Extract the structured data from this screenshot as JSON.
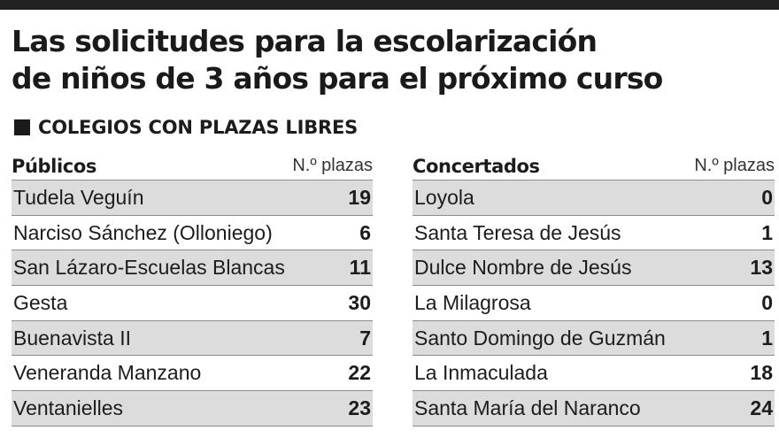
{
  "title": {
    "line1": "Las solicitudes para la escolarización",
    "line2": "de niños de 3 años para el próximo curso"
  },
  "section_heading": "COLEGIOS CON PLAZAS LIBRES",
  "publicos": {
    "label": "Públicos",
    "unit": "N.º plazas",
    "rows": [
      {
        "name": "Tudela Veguín",
        "plazas": "19"
      },
      {
        "name": "Narciso Sánchez (Olloniego)",
        "plazas": "6"
      },
      {
        "name": "San Lázaro-Escuelas Blancas",
        "plazas": "11"
      },
      {
        "name": "Gesta",
        "plazas": "30"
      },
      {
        "name": "Buenavista II",
        "plazas": "7"
      },
      {
        "name": "Veneranda Manzano",
        "plazas": "22"
      },
      {
        "name": "Ventanielles",
        "plazas": "23"
      }
    ]
  },
  "concertados": {
    "label": "Concertados",
    "unit": "N.º plazas",
    "rows": [
      {
        "name": "Loyola",
        "plazas": "0"
      },
      {
        "name": "Santa Teresa de Jesús",
        "plazas": "1"
      },
      {
        "name": "Dulce Nombre de Jesús",
        "plazas": "13"
      },
      {
        "name": "La Milagrosa",
        "plazas": "0"
      },
      {
        "name": "Santo Domingo de Guzmán",
        "plazas": "1"
      },
      {
        "name": "La Inmaculada",
        "plazas": "18"
      },
      {
        "name": "Santa María del Naranco",
        "plazas": "24"
      }
    ]
  },
  "colors": {
    "shade": "#dcdcdc",
    "rule": "#8c8c8c",
    "bar": "#222222"
  }
}
